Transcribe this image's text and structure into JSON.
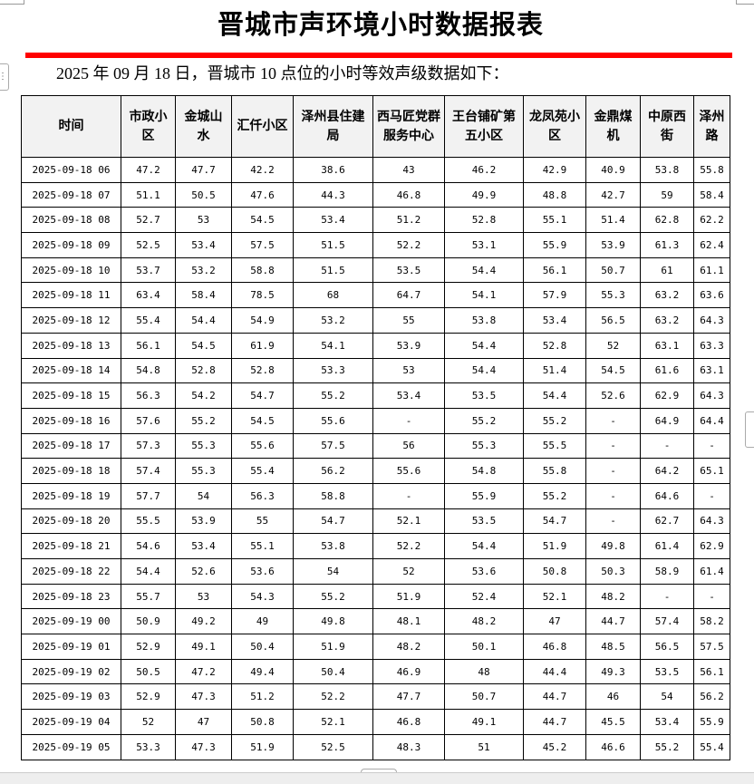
{
  "document": {
    "title": "晋城市声环境小时数据报表",
    "subtitle": "2025 年 09 月 18 日，晋城市 10 点位的小时等效声级数据如下：",
    "accent_color": "#ff0000"
  },
  "table": {
    "headers": [
      "时间",
      "市政小区",
      "金城山水",
      "汇仟小区",
      "泽州县住建局",
      "西马匠党群服务中心",
      "王台铺矿第五小区",
      "龙凤苑小区",
      "金鼎煤机",
      "中原西街",
      "泽州路"
    ],
    "rows": [
      [
        "2025-09-18 06",
        "47.2",
        "47.7",
        "42.2",
        "38.6",
        "43",
        "46.2",
        "42.9",
        "40.9",
        "53.8",
        "55.8"
      ],
      [
        "2025-09-18 07",
        "51.1",
        "50.5",
        "47.6",
        "44.3",
        "46.8",
        "49.9",
        "48.8",
        "42.7",
        "59",
        "58.4"
      ],
      [
        "2025-09-18 08",
        "52.7",
        "53",
        "54.5",
        "53.4",
        "51.2",
        "52.8",
        "55.1",
        "51.4",
        "62.8",
        "62.2"
      ],
      [
        "2025-09-18 09",
        "52.5",
        "53.4",
        "57.5",
        "51.5",
        "52.2",
        "53.1",
        "55.9",
        "53.9",
        "61.3",
        "62.4"
      ],
      [
        "2025-09-18 10",
        "53.7",
        "53.2",
        "58.8",
        "51.5",
        "53.5",
        "54.4",
        "56.1",
        "50.7",
        "61",
        "61.1"
      ],
      [
        "2025-09-18 11",
        "63.4",
        "58.4",
        "78.5",
        "68",
        "64.7",
        "54.1",
        "57.9",
        "55.3",
        "63.2",
        "63.6"
      ],
      [
        "2025-09-18 12",
        "55.4",
        "54.4",
        "54.9",
        "53.2",
        "55",
        "53.8",
        "53.4",
        "56.5",
        "63.2",
        "64.3"
      ],
      [
        "2025-09-18 13",
        "56.1",
        "54.5",
        "61.9",
        "54.1",
        "53.9",
        "54.4",
        "52.8",
        "52",
        "63.1",
        "63.3"
      ],
      [
        "2025-09-18 14",
        "54.8",
        "52.8",
        "52.8",
        "53.3",
        "53",
        "54.4",
        "51.4",
        "54.5",
        "61.6",
        "63.1"
      ],
      [
        "2025-09-18 15",
        "56.3",
        "54.2",
        "54.7",
        "55.2",
        "53.4",
        "53.5",
        "54.4",
        "52.6",
        "62.9",
        "64.3"
      ],
      [
        "2025-09-18 16",
        "57.6",
        "55.2",
        "54.5",
        "55.6",
        "-",
        "55.2",
        "55.2",
        "-",
        "64.9",
        "64.4"
      ],
      [
        "2025-09-18 17",
        "57.3",
        "55.3",
        "55.6",
        "57.5",
        "56",
        "55.3",
        "55.5",
        "-",
        "-",
        "-"
      ],
      [
        "2025-09-18 18",
        "57.4",
        "55.3",
        "55.4",
        "56.2",
        "55.6",
        "54.8",
        "55.8",
        "-",
        "64.2",
        "65.1"
      ],
      [
        "2025-09-18 19",
        "57.7",
        "54",
        "56.3",
        "58.8",
        "-",
        "55.9",
        "55.2",
        "-",
        "64.6",
        "-"
      ],
      [
        "2025-09-18 20",
        "55.5",
        "53.9",
        "55",
        "54.7",
        "52.1",
        "53.5",
        "54.7",
        "-",
        "62.7",
        "64.3"
      ],
      [
        "2025-09-18 21",
        "54.6",
        "53.4",
        "55.1",
        "53.8",
        "52.2",
        "54.4",
        "51.9",
        "49.8",
        "61.4",
        "62.9"
      ],
      [
        "2025-09-18 22",
        "54.4",
        "52.6",
        "53.6",
        "54",
        "52",
        "53.6",
        "50.8",
        "50.3",
        "58.9",
        "61.4"
      ],
      [
        "2025-09-18 23",
        "55.7",
        "53",
        "54.3",
        "55.2",
        "51.9",
        "52.4",
        "52.1",
        "48.2",
        "-",
        "-"
      ],
      [
        "2025-09-19 00",
        "50.9",
        "49.2",
        "49",
        "49.8",
        "48.1",
        "48.2",
        "47",
        "44.7",
        "57.4",
        "58.2"
      ],
      [
        "2025-09-19 01",
        "52.9",
        "49.1",
        "50.4",
        "51.9",
        "48.2",
        "50.1",
        "46.8",
        "48.5",
        "56.5",
        "57.5"
      ],
      [
        "2025-09-19 02",
        "50.5",
        "47.2",
        "49.4",
        "50.4",
        "46.9",
        "48",
        "44.4",
        "49.3",
        "53.5",
        "56.1"
      ],
      [
        "2025-09-19 03",
        "52.9",
        "47.3",
        "51.2",
        "52.2",
        "47.7",
        "50.7",
        "44.7",
        "46",
        "54",
        "56.2"
      ],
      [
        "2025-09-19 04",
        "52",
        "47",
        "50.8",
        "52.1",
        "46.8",
        "49.1",
        "44.7",
        "45.5",
        "53.4",
        "55.9"
      ],
      [
        "2025-09-19 05",
        "53.3",
        "47.3",
        "51.9",
        "52.5",
        "48.3",
        "51",
        "45.2",
        "46.6",
        "55.2",
        "55.4"
      ]
    ]
  }
}
